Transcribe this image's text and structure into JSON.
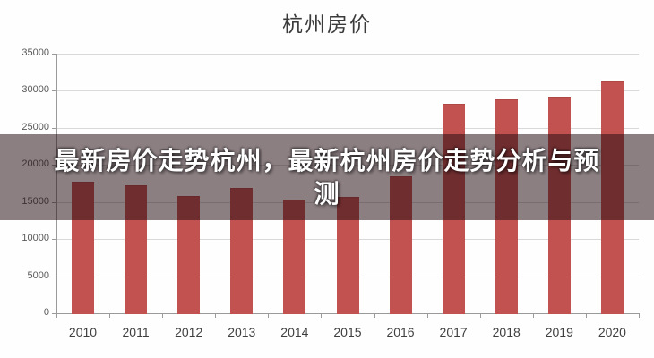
{
  "page": {
    "background": "#fefefe"
  },
  "chart_data": {
    "type": "bar",
    "title": "杭州房价",
    "categories": [
      "2010",
      "2011",
      "2012",
      "2013",
      "2014",
      "2015",
      "2016",
      "2017",
      "2018",
      "2019",
      "2020"
    ],
    "values": [
      17700,
      17200,
      15800,
      16900,
      15300,
      15700,
      18500,
      28200,
      28900,
      29200,
      31300
    ],
    "series_name": "房价",
    "xlabel": "",
    "ylabel": "",
    "ylim": [
      0,
      35000
    ],
    "ytick_step": 5000,
    "yticks": [
      "0",
      "5000",
      "10000",
      "15000",
      "20000",
      "25000",
      "30000",
      "35000"
    ],
    "bar_color": "#c25250",
    "grid": "horizontal",
    "gridline_color": "#d9d9d9",
    "legend": "none"
  },
  "overlay": {
    "full_text": "最新房价走势杭州，最新杭州房价走势分析与预测",
    "line1": "最新房价走势杭州，最新杭州房价走势分析与预",
    "line2": "测",
    "background": "rgba(38,14,19,0.53)",
    "text_color": "#ffffff"
  }
}
